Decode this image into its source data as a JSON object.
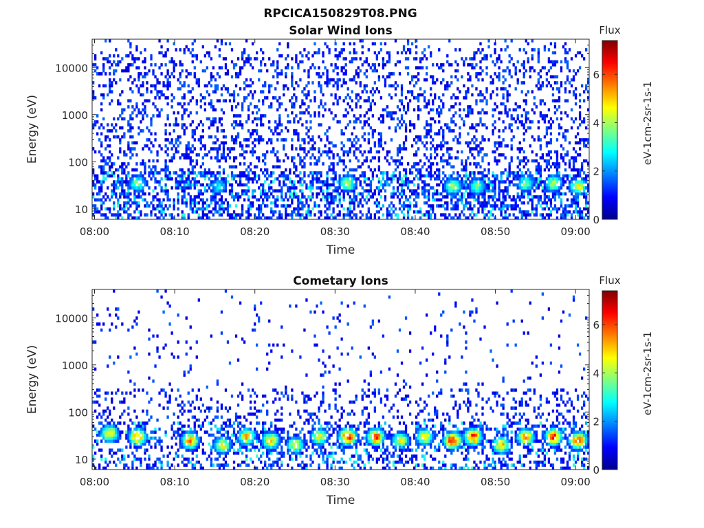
{
  "figure_title": "RPCICA150829T08.PNG",
  "colormap": [
    "#00008f",
    "#0000ff",
    "#0080ff",
    "#00ffff",
    "#80ff80",
    "#ffff00",
    "#ff8000",
    "#ff0000",
    "#800000"
  ],
  "chart_data": [
    {
      "type": "heatmap",
      "title": "Solar Wind Ions",
      "xlabel": "Time",
      "ylabel": "Energy (eV)",
      "x_ticks": [
        "08:00",
        "08:10",
        "08:20",
        "08:30",
        "08:40",
        "08:50",
        "09:00"
      ],
      "y_ticks": [
        "10",
        "100",
        "1000",
        "10000"
      ],
      "y_scale": "log",
      "ylim": [
        6,
        40000
      ],
      "colorbar": {
        "title": "Flux",
        "label": "eV-1cm-2sr-1s-1",
        "ticks": [
          "0",
          "2",
          "4",
          "6"
        ],
        "range": [
          0,
          7.4
        ]
      },
      "hotspots": [
        {
          "t": 5.5,
          "e": 35,
          "v": 4.0
        },
        {
          "t": 15.5,
          "e": 30,
          "v": 3.2
        },
        {
          "t": 31.5,
          "e": 35,
          "v": 4.5
        },
        {
          "t": 44.5,
          "e": 30,
          "v": 4.5
        },
        {
          "t": 47.5,
          "e": 30,
          "v": 4.0
        },
        {
          "t": 53.5,
          "e": 35,
          "v": 4.0
        },
        {
          "t": 57.0,
          "e": 35,
          "v": 4.5
        },
        {
          "t": 60.0,
          "e": 30,
          "v": 5.0
        }
      ]
    },
    {
      "type": "heatmap",
      "title": "Cometary Ions",
      "xlabel": "Time",
      "ylabel": "Energy (eV)",
      "x_ticks": [
        "08:00",
        "08:10",
        "08:20",
        "08:30",
        "08:40",
        "08:50",
        "09:00"
      ],
      "y_ticks": [
        "10",
        "100",
        "1000",
        "10000"
      ],
      "y_scale": "log",
      "ylim": [
        6,
        40000
      ],
      "colorbar": {
        "title": "Flux",
        "label": "eV-1cm-2sr-1s-1",
        "ticks": [
          "0",
          "2",
          "4",
          "6"
        ],
        "range": [
          0,
          7.4
        ]
      },
      "hotspots": [
        {
          "t": 2.0,
          "e": 35,
          "v": 5.5
        },
        {
          "t": 5.5,
          "e": 30,
          "v": 6.3
        },
        {
          "t": 12.0,
          "e": 25,
          "v": 6.0
        },
        {
          "t": 16.0,
          "e": 20,
          "v": 5.0
        },
        {
          "t": 19.0,
          "e": 30,
          "v": 5.5
        },
        {
          "t": 22.0,
          "e": 25,
          "v": 5.5
        },
        {
          "t": 25.0,
          "e": 20,
          "v": 5.0
        },
        {
          "t": 28.0,
          "e": 30,
          "v": 5.0
        },
        {
          "t": 31.5,
          "e": 30,
          "v": 6.8
        },
        {
          "t": 35.0,
          "e": 30,
          "v": 6.5
        },
        {
          "t": 38.0,
          "e": 25,
          "v": 5.0
        },
        {
          "t": 41.0,
          "e": 30,
          "v": 5.5
        },
        {
          "t": 44.5,
          "e": 25,
          "v": 7.0
        },
        {
          "t": 47.0,
          "e": 30,
          "v": 6.8
        },
        {
          "t": 50.5,
          "e": 20,
          "v": 5.5
        },
        {
          "t": 53.5,
          "e": 30,
          "v": 6.0
        },
        {
          "t": 57.0,
          "e": 30,
          "v": 7.0
        },
        {
          "t": 60.0,
          "e": 25,
          "v": 6.8
        }
      ]
    }
  ]
}
